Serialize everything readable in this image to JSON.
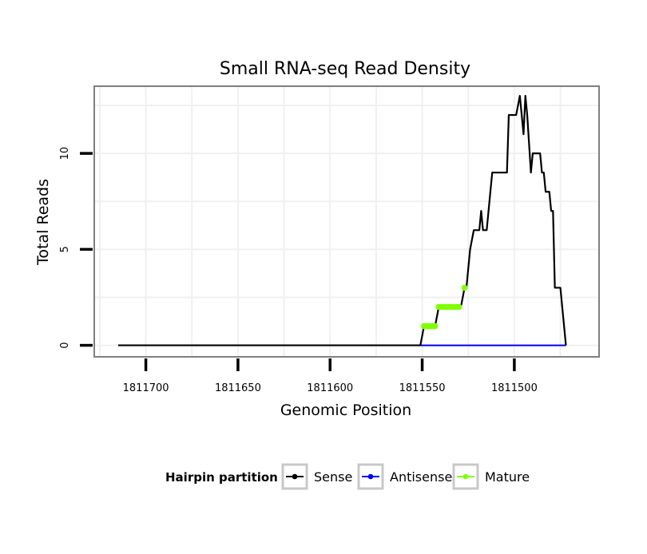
{
  "chart_data": {
    "type": "line",
    "title": "Small RNA-seq Read Density",
    "xlabel": "Genomic Position",
    "ylabel": "Total Reads",
    "x_reversed": true,
    "xlim": [
      1811728,
      1811454
    ],
    "ylim": [
      -0.6,
      13.5
    ],
    "x_ticks": [
      1811700,
      1811650,
      1811600,
      1811550,
      1811500
    ],
    "y_ticks": [
      0,
      5,
      10
    ],
    "grid": true,
    "legend_position": "bottom",
    "legend_title": "Hairpin partition",
    "series": [
      {
        "name": "Sense",
        "color": "#000000",
        "points": [
          [
            1811715,
            0
          ],
          [
            1811551,
            0
          ],
          [
            1811549,
            1
          ],
          [
            1811543,
            1
          ],
          [
            1811541,
            2
          ],
          [
            1811529,
            2
          ],
          [
            1811527,
            3
          ],
          [
            1811526,
            3
          ],
          [
            1811524,
            5
          ],
          [
            1811522,
            6
          ],
          [
            1811519,
            6
          ],
          [
            1811518,
            7
          ],
          [
            1811517,
            6
          ],
          [
            1811515,
            6
          ],
          [
            1811514,
            7
          ],
          [
            1811512,
            9
          ],
          [
            1811504,
            9
          ],
          [
            1811503,
            12
          ],
          [
            1811499,
            12
          ],
          [
            1811497,
            13
          ],
          [
            1811495,
            11
          ],
          [
            1811494,
            13
          ],
          [
            1811493,
            12
          ],
          [
            1811491,
            9
          ],
          [
            1811490,
            10
          ],
          [
            1811486,
            10
          ],
          [
            1811485,
            9
          ],
          [
            1811484,
            9
          ],
          [
            1811483,
            8
          ],
          [
            1811481,
            8
          ],
          [
            1811480,
            7
          ],
          [
            1811479,
            7
          ],
          [
            1811478,
            3
          ],
          [
            1811475,
            3
          ],
          [
            1811472,
            0
          ]
        ]
      },
      {
        "name": "Antisense",
        "color": "#0000ff",
        "points": [
          [
            1811551,
            0
          ],
          [
            1811472,
            0
          ]
        ]
      },
      {
        "name": "Mature",
        "color": "#7fff00",
        "points": [
          [
            1811549,
            1
          ],
          [
            1811548,
            1
          ],
          [
            1811547,
            1
          ],
          [
            1811546,
            1
          ],
          [
            1811545,
            1
          ],
          [
            1811544,
            1
          ],
          [
            1811543,
            1
          ],
          [
            1811541,
            2
          ],
          [
            1811540,
            2
          ],
          [
            1811539,
            2
          ],
          [
            1811538,
            2
          ],
          [
            1811537,
            2
          ],
          [
            1811536,
            2
          ],
          [
            1811535,
            2
          ],
          [
            1811534,
            2
          ],
          [
            1811533,
            2
          ],
          [
            1811532,
            2
          ],
          [
            1811531,
            2
          ],
          [
            1811530,
            2
          ],
          [
            1811527,
            3
          ]
        ]
      }
    ]
  }
}
